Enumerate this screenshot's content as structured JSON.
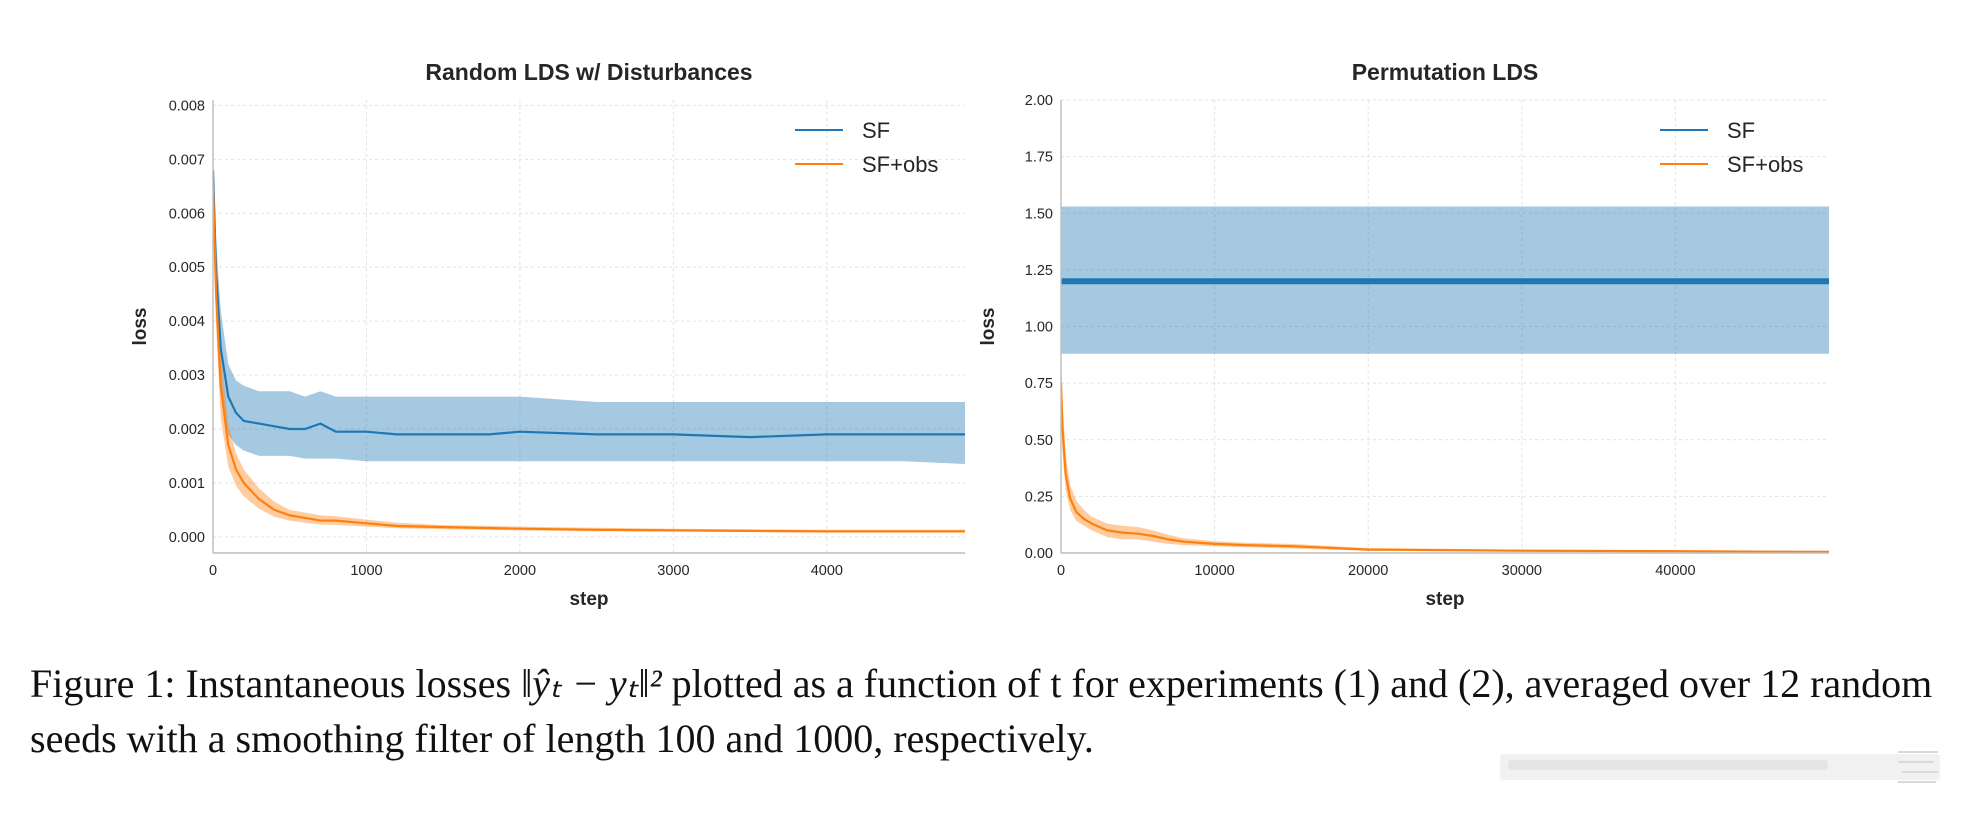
{
  "chart_data": [
    {
      "type": "line",
      "title": "Random LDS w/ Disturbances",
      "xlabel": "step",
      "ylabel": "loss",
      "xlim": [
        0,
        4900
      ],
      "ylim": [
        -0.0003,
        0.0081
      ],
      "xticks": [
        0,
        1000,
        2000,
        3000,
        4000
      ],
      "yticks": [
        0.0,
        0.001,
        0.002,
        0.003,
        0.004,
        0.005,
        0.006,
        0.007,
        0.008
      ],
      "ytick_decimals": 3,
      "grid": true,
      "legend": "top-right",
      "series": [
        {
          "name": "SF",
          "color": "#1f77b4",
          "x": [
            0,
            20,
            50,
            100,
            150,
            200,
            300,
            400,
            500,
            600,
            700,
            800,
            1000,
            1200,
            1500,
            1800,
            2000,
            2500,
            3000,
            3500,
            4000,
            4500,
            4900
          ],
          "y": [
            0.0068,
            0.0049,
            0.0035,
            0.0026,
            0.0023,
            0.00215,
            0.0021,
            0.00205,
            0.002,
            0.002,
            0.0021,
            0.00195,
            0.00195,
            0.0019,
            0.0019,
            0.0019,
            0.00195,
            0.0019,
            0.0019,
            0.00185,
            0.0019,
            0.0019,
            0.0019
          ],
          "lower": [
            0.0065,
            0.0043,
            0.0028,
            0.0019,
            0.0017,
            0.0016,
            0.0015,
            0.0015,
            0.0015,
            0.00145,
            0.00145,
            0.00145,
            0.0014,
            0.0014,
            0.0014,
            0.0014,
            0.0014,
            0.0014,
            0.0014,
            0.0014,
            0.0014,
            0.0014,
            0.00135
          ],
          "upper": [
            0.0072,
            0.0055,
            0.0042,
            0.0032,
            0.0029,
            0.0028,
            0.0027,
            0.0027,
            0.0027,
            0.0026,
            0.0027,
            0.0026,
            0.0026,
            0.0026,
            0.0026,
            0.0026,
            0.0026,
            0.0025,
            0.0025,
            0.0025,
            0.0025,
            0.0025,
            0.0025
          ]
        },
        {
          "name": "SF+obs",
          "color": "#ff7f0e",
          "x": [
            0,
            20,
            50,
            100,
            150,
            200,
            300,
            400,
            500,
            600,
            700,
            800,
            1000,
            1200,
            1500,
            2000,
            2500,
            3000,
            4000,
            4900
          ],
          "y": [
            0.0065,
            0.0045,
            0.0028,
            0.0017,
            0.00125,
            0.001,
            0.0007,
            0.0005,
            0.0004,
            0.00035,
            0.0003,
            0.0003,
            0.00025,
            0.0002,
            0.00018,
            0.00015,
            0.00013,
            0.00012,
            0.0001,
            0.0001
          ],
          "lower": [
            0.006,
            0.0039,
            0.0022,
            0.0013,
            0.00095,
            0.00075,
            0.00052,
            0.00037,
            0.0003,
            0.00026,
            0.00023,
            0.00022,
            0.00019,
            0.00016,
            0.00014,
            0.00012,
            0.0001,
            0.0001,
            8e-05,
            8e-05
          ],
          "upper": [
            0.0071,
            0.0052,
            0.0034,
            0.0021,
            0.00155,
            0.00125,
            0.0009,
            0.00065,
            0.0005,
            0.00045,
            0.0004,
            0.00038,
            0.00032,
            0.00026,
            0.00022,
            0.00019,
            0.00017,
            0.00015,
            0.00013,
            0.00013
          ]
        }
      ]
    },
    {
      "type": "line",
      "title": "Permutation LDS",
      "xlabel": "step",
      "ylabel": "loss",
      "xlim": [
        0,
        50000
      ],
      "ylim": [
        0.0,
        2.0
      ],
      "xticks": [
        0,
        10000,
        20000,
        30000,
        40000
      ],
      "yticks": [
        0.0,
        0.25,
        0.5,
        0.75,
        1.0,
        1.25,
        1.5,
        1.75,
        2.0
      ],
      "ytick_decimals": 2,
      "grid": true,
      "legend": "top-right",
      "series": [
        {
          "name": "SF",
          "color": "#1f77b4",
          "x": [
            0,
            50000
          ],
          "y": [
            1.2,
            1.2
          ],
          "lower": [
            0.88,
            0.88
          ],
          "upper": [
            1.53,
            1.53
          ]
        },
        {
          "name": "SF+obs",
          "color": "#ff7f0e",
          "x": [
            0,
            100,
            300,
            600,
            1000,
            1500,
            2000,
            3000,
            4000,
            5000,
            6000,
            7000,
            8000,
            10000,
            12000,
            15000,
            20000,
            30000,
            40000,
            50000
          ],
          "y": [
            0.75,
            0.55,
            0.35,
            0.24,
            0.18,
            0.15,
            0.13,
            0.1,
            0.09,
            0.085,
            0.075,
            0.06,
            0.05,
            0.04,
            0.035,
            0.03,
            0.015,
            0.01,
            0.008,
            0.005
          ],
          "lower": [
            0.6,
            0.45,
            0.28,
            0.19,
            0.14,
            0.12,
            0.1,
            0.07,
            0.06,
            0.06,
            0.05,
            0.04,
            0.035,
            0.03,
            0.025,
            0.02,
            0.01,
            0.005,
            0.003,
            0.002
          ],
          "upper": [
            0.9,
            0.68,
            0.44,
            0.3,
            0.23,
            0.19,
            0.16,
            0.13,
            0.12,
            0.115,
            0.1,
            0.08,
            0.065,
            0.052,
            0.045,
            0.04,
            0.022,
            0.015,
            0.012,
            0.008
          ]
        }
      ]
    }
  ],
  "caption": {
    "prefix": "Figure 1: Instantaneous losses ",
    "math": "‖ŷₜ − yₜ‖²",
    "suffix": " plotted as a function of t for experiments (1) and (2), averaged over 12 random seeds with a smoothing filter of length 100 and 1000, respectively."
  }
}
